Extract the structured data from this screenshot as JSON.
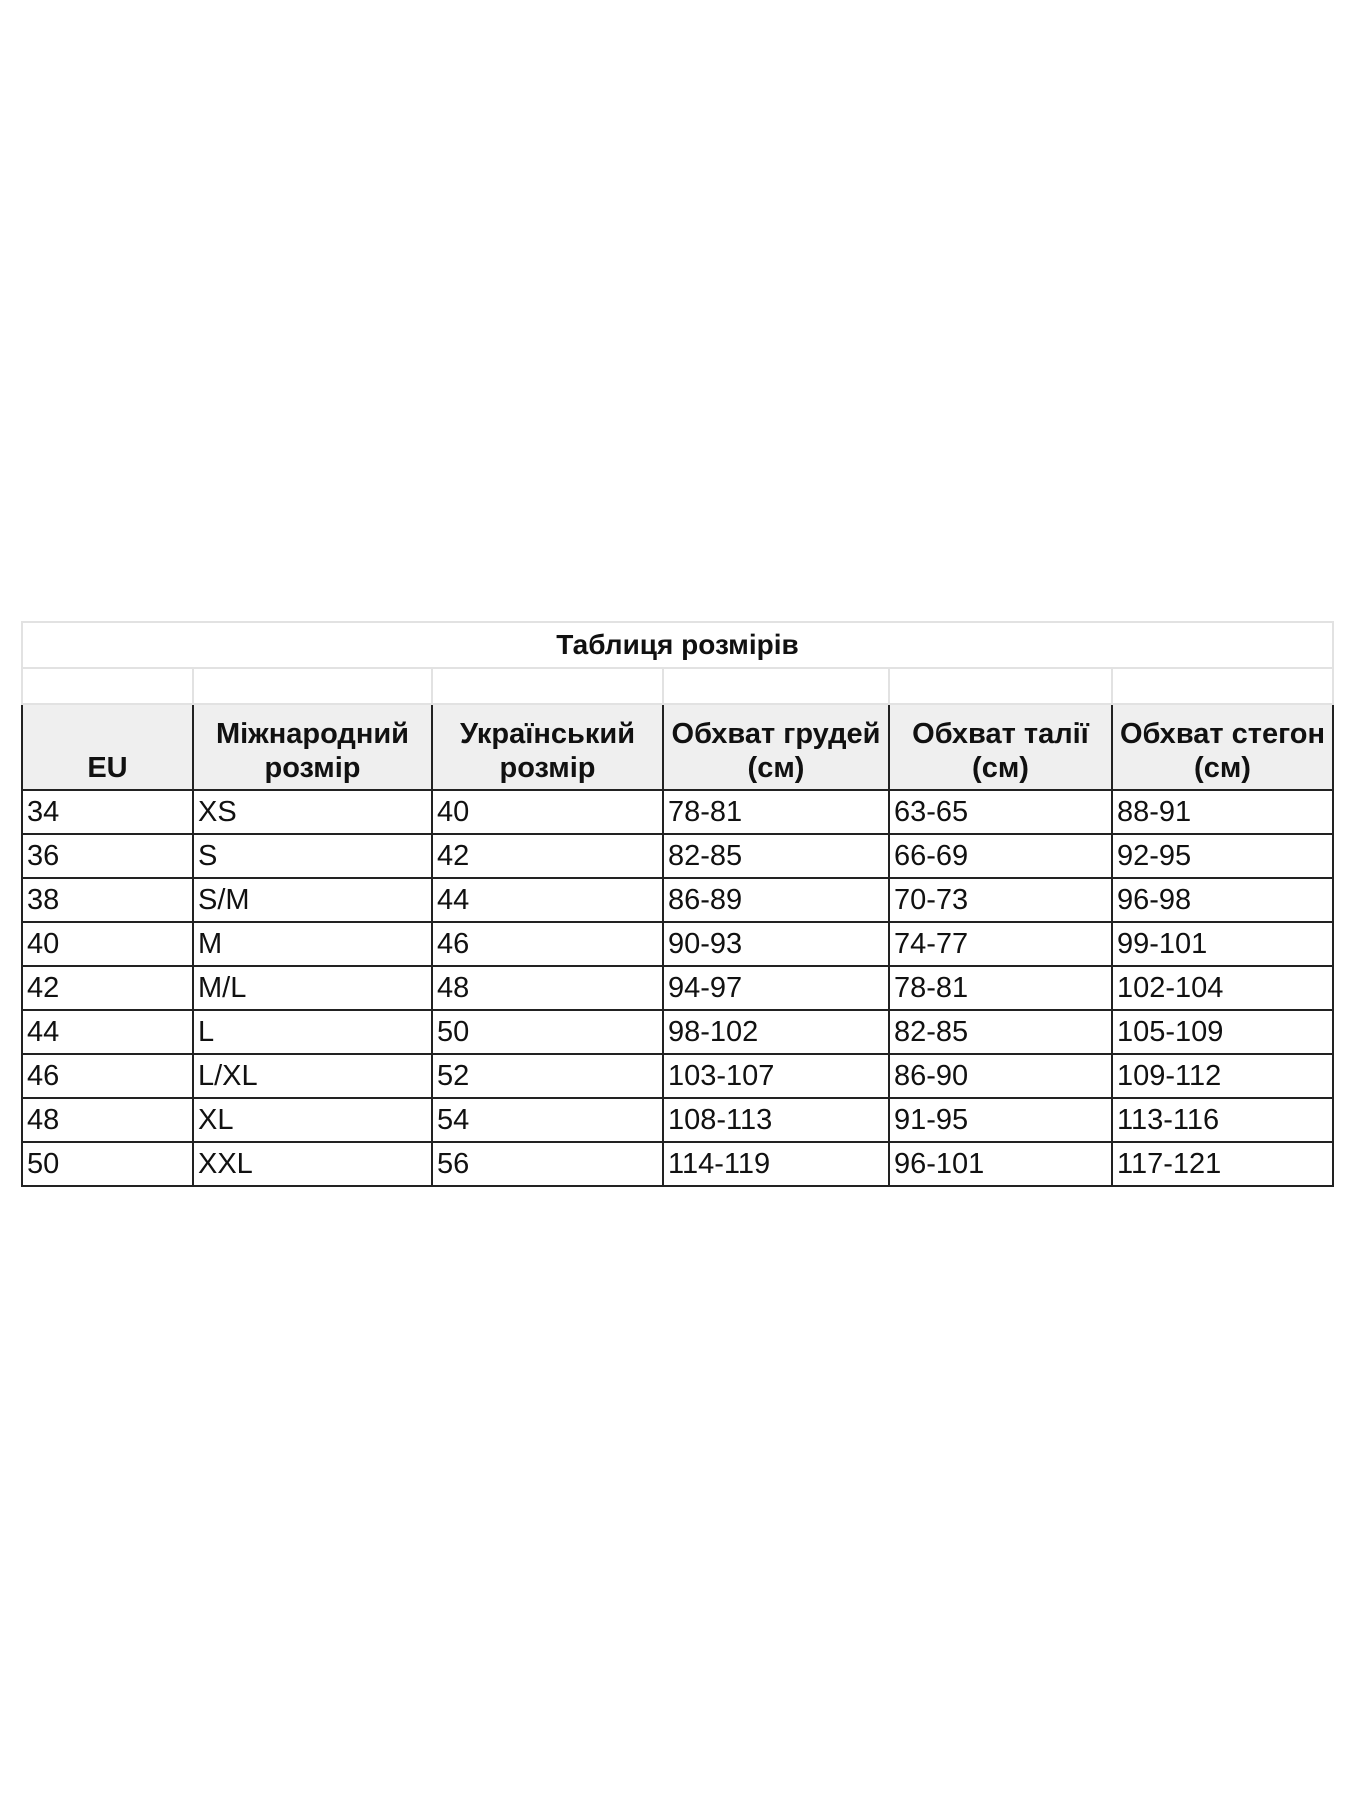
{
  "title": "Таблиця розмірів",
  "headers": [
    "EU",
    "Міжнародний розмір",
    "Український розмір",
    "Обхват грудей (см)",
    "Обхват талії (см)",
    "Обхват стегон (см)"
  ],
  "rows": [
    [
      "34",
      "XS",
      "40",
      "78-81",
      "63-65",
      "88-91"
    ],
    [
      "36",
      "S",
      "42",
      "82-85",
      "66-69",
      "92-95"
    ],
    [
      "38",
      "S/M",
      "44",
      "86-89",
      "70-73",
      "96-98"
    ],
    [
      "40",
      "M",
      "46",
      "90-93",
      "74-77",
      "99-101"
    ],
    [
      "42",
      "M/L",
      "48",
      "94-97",
      "78-81",
      "102-104"
    ],
    [
      "44",
      "L",
      "50",
      "98-102",
      "82-85",
      "105-109"
    ],
    [
      "46",
      "L/XL",
      "52",
      "103-107",
      "86-90",
      "109-112"
    ],
    [
      "48",
      "XL",
      "54",
      "108-113",
      "91-95",
      "113-116"
    ],
    [
      "50",
      "XXL",
      "56",
      "114-119",
      "96-101",
      "117-121"
    ]
  ],
  "colors": {
    "header_bg": "#efefef",
    "border": "#222222",
    "light_border": "#e2e2e2"
  }
}
